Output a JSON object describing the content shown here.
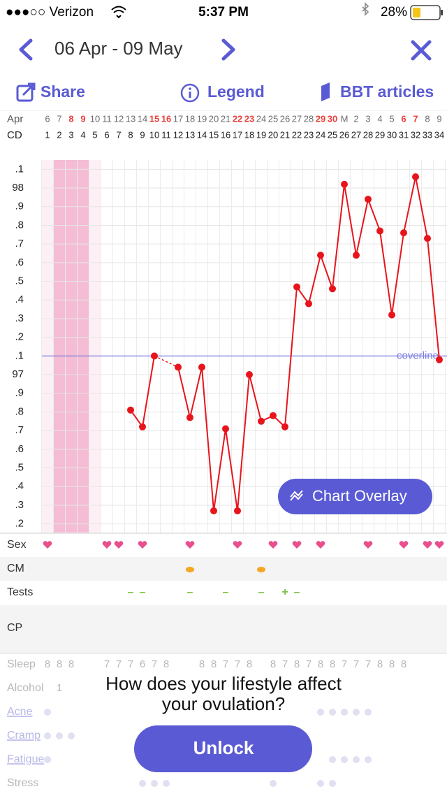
{
  "status_bar": {
    "carrier": "●●●○○ Verizon",
    "time": "5:37 PM",
    "battery": "28%"
  },
  "header": {
    "date_range": "06 Apr - 09 May"
  },
  "toolbar": {
    "share": "Share",
    "legend": "Legend",
    "articles": "BBT articles"
  },
  "chart_data": {
    "type": "line",
    "month_label": "Apr",
    "cd_label": "CD",
    "categories": [
      "6",
      "7",
      "8",
      "9",
      "10",
      "11",
      "12",
      "13",
      "14",
      "15",
      "16",
      "17",
      "18",
      "19",
      "20",
      "21",
      "22",
      "23",
      "24",
      "25",
      "26",
      "27",
      "28",
      "29",
      "30",
      "M",
      "2",
      "3",
      "4",
      "5",
      "6",
      "7",
      "8",
      "9"
    ],
    "category_colors": [
      "#6d6d6d",
      "#6d6d6d",
      "#e8413c",
      "#e8413c",
      "#6d6d6d",
      "#6d6d6d",
      "#6d6d6d",
      "#6d6d6d",
      "#6d6d6d",
      "#e8413c",
      "#e8413c",
      "#6d6d6d",
      "#6d6d6d",
      "#6d6d6d",
      "#6d6d6d",
      "#6d6d6d",
      "#e8413c",
      "#e8413c",
      "#6d6d6d",
      "#6d6d6d",
      "#6d6d6d",
      "#6d6d6d",
      "#6d6d6d",
      "#e8413c",
      "#e8413c",
      "#6d6d6d",
      "#6d6d6d",
      "#6d6d6d",
      "#6d6d6d",
      "#6d6d6d",
      "#e8413c",
      "#e8413c",
      "#6d6d6d",
      "#6d6d6d"
    ],
    "cycle_days": [
      1,
      2,
      3,
      4,
      5,
      6,
      7,
      8,
      9,
      10,
      11,
      12,
      13,
      14,
      15,
      16,
      17,
      18,
      19,
      20,
      21,
      22,
      23,
      24,
      25,
      26,
      27,
      28,
      29,
      30,
      31,
      32,
      33,
      34
    ],
    "series": [
      {
        "color": "#e8141b",
        "values": [
          null,
          null,
          null,
          null,
          null,
          null,
          null,
          96.81,
          96.72,
          97.1,
          null,
          97.04,
          96.77,
          97.04,
          96.27,
          96.71,
          96.27,
          97.0,
          96.75,
          96.78,
          96.72,
          97.47,
          97.38,
          97.64,
          97.46,
          98.02,
          97.64,
          97.94,
          97.77,
          97.32,
          97.76,
          98.06,
          97.73,
          97.08
        ]
      }
    ],
    "ylim": [
      96.15,
      98.15
    ],
    "yticks": [
      {
        "value": 98.1,
        "label": ".1"
      },
      98,
      {
        "value": 97.9,
        "label": ".9"
      },
      {
        "value": 97.8,
        "label": ".8"
      },
      {
        "value": 97.7,
        "label": ".7"
      },
      {
        "value": 97.6,
        "label": ".6"
      },
      {
        "value": 97.5,
        "label": ".5"
      },
      {
        "value": 97.4,
        "label": ".4"
      },
      {
        "value": 97.3,
        "label": ".3"
      },
      {
        "value": 97.2,
        "label": ".2"
      },
      {
        "value": 97.1,
        "label": ".1"
      },
      97,
      {
        "value": 96.9,
        "label": ".9"
      },
      {
        "value": 96.8,
        "label": ".8"
      },
      {
        "value": 96.7,
        "label": ".7"
      },
      {
        "value": 96.6,
        "label": ".6"
      },
      {
        "value": 96.5,
        "label": ".5"
      },
      {
        "value": 96.4,
        "label": ".4"
      },
      {
        "value": 96.3,
        "label": ".3"
      },
      {
        "value": 96.2,
        "label": ".2"
      }
    ],
    "grid": true,
    "coverline": {
      "value": 97.1,
      "label": "coverline",
      "color": "#7b7be0"
    },
    "overlay_button": "Chart Overlay"
  },
  "symptoms": {
    "sex": {
      "label": "Sex",
      "days": [
        1,
        6,
        7,
        9,
        13,
        17,
        20,
        22,
        24,
        28,
        31,
        33,
        34
      ]
    },
    "cm": {
      "label": "CM",
      "days": [
        13,
        19
      ]
    },
    "tests": {
      "label": "Tests",
      "marks": [
        null,
        null,
        null,
        null,
        null,
        null,
        null,
        "–",
        "–",
        null,
        null,
        null,
        "–",
        null,
        null,
        "–",
        null,
        null,
        "–",
        null,
        "+",
        "–",
        null,
        null,
        null,
        null,
        null,
        null,
        null,
        null,
        null,
        null,
        null,
        null
      ]
    },
    "cp": {
      "label": "CP"
    }
  },
  "lifestyle": {
    "sleep": {
      "label": "Sleep",
      "values": [
        8,
        8,
        8,
        null,
        null,
        7,
        7,
        7,
        6,
        7,
        8,
        null,
        null,
        8,
        8,
        7,
        7,
        8,
        null,
        8,
        7,
        8,
        7,
        8,
        8,
        7,
        7,
        7,
        8,
        8,
        8,
        null,
        null,
        null
      ]
    },
    "alcohol": {
      "label": "Alcohol",
      "values": [
        null,
        1,
        null,
        null,
        null,
        null,
        null,
        null,
        null,
        null,
        null,
        null,
        null,
        null,
        null,
        null,
        null,
        null,
        null,
        null,
        null,
        null,
        null,
        null,
        null,
        null,
        null,
        null,
        null,
        null,
        null,
        null,
        null,
        null
      ]
    },
    "acne": {
      "label": "Acne"
    },
    "cramp": {
      "label": "Cramp"
    },
    "fatigue": {
      "label": "Fatigue"
    },
    "stress": {
      "label": "Stress"
    }
  },
  "promo": {
    "question": [
      "How does your lifestyle affect",
      "your ovulation?"
    ],
    "button": "Unlock"
  }
}
